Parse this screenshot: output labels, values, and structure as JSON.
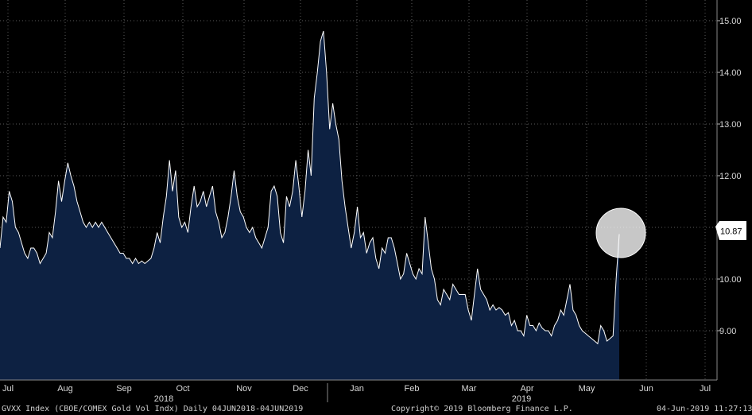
{
  "chart_data": {
    "type": "area",
    "x_labels": [
      "Jul",
      "Aug",
      "Sep",
      "Oct",
      "Nov",
      "Dec",
      "Jan",
      "Feb",
      "Mar",
      "Apr",
      "May",
      "Jun",
      "Jul"
    ],
    "year_labels": [
      "2018",
      "2019"
    ],
    "y_ticks": [
      "9.00",
      "10.00",
      "11.00",
      "12.00",
      "13.00",
      "14.00",
      "15.00"
    ],
    "ylim": [
      8.0,
      15.4
    ],
    "grid": true,
    "colors": {
      "background": "#000000",
      "area": "#0d2142",
      "line": "#ffffff",
      "grid": "#5a5a5a",
      "tag": "#ffffff"
    },
    "last_value": "10.87",
    "highlight": "circle around last value",
    "series": [
      {
        "values": [
          10.6,
          11.2,
          11.1,
          11.7,
          11.5,
          11.0,
          10.9,
          10.7,
          10.5,
          10.4,
          10.6,
          10.6,
          10.5,
          10.3,
          10.4,
          10.5,
          10.9,
          10.8,
          11.3,
          11.9,
          11.5,
          11.9,
          12.25,
          12.0,
          11.8,
          11.5,
          11.3,
          11.1,
          11.0,
          11.1,
          11.0,
          11.1,
          11.0,
          11.1,
          11.0,
          10.9,
          10.8,
          10.7,
          10.6,
          10.5,
          10.5,
          10.4,
          10.4,
          10.3,
          10.4,
          10.3,
          10.35,
          10.3,
          10.35,
          10.4,
          10.6,
          10.9,
          10.7,
          11.2,
          11.6,
          12.3,
          11.7,
          12.1,
          11.2,
          11.0,
          11.1,
          10.9,
          11.4,
          11.8,
          11.4,
          11.5,
          11.7,
          11.4,
          11.6,
          11.8,
          11.3,
          11.1,
          10.8,
          10.9,
          11.2,
          11.6,
          12.1,
          11.6,
          11.3,
          11.2,
          11.0,
          10.9,
          11.0,
          10.8,
          10.7,
          10.6,
          10.8,
          11.0,
          11.7,
          11.8,
          11.6,
          10.9,
          10.7,
          11.6,
          11.4,
          11.7,
          12.3,
          11.8,
          11.2,
          11.7,
          12.5,
          12.0,
          13.5,
          14.0,
          14.6,
          14.8,
          14.0,
          12.9,
          13.4,
          13.0,
          12.7,
          11.9,
          11.4,
          11.0,
          10.6,
          10.9,
          11.4,
          10.8,
          10.9,
          10.5,
          10.7,
          10.8,
          10.4,
          10.2,
          10.6,
          10.5,
          10.8,
          10.8,
          10.6,
          10.3,
          10.0,
          10.1,
          10.5,
          10.3,
          10.1,
          10.0,
          10.2,
          10.1,
          11.2,
          10.7,
          10.2,
          10.0,
          9.6,
          9.5,
          9.8,
          9.7,
          9.6,
          9.9,
          9.8,
          9.7,
          9.7,
          9.7,
          9.4,
          9.2,
          9.7,
          10.2,
          9.8,
          9.7,
          9.6,
          9.4,
          9.5,
          9.4,
          9.45,
          9.4,
          9.3,
          9.35,
          9.1,
          9.2,
          9.0,
          9.0,
          8.9,
          9.3,
          9.1,
          9.1,
          9.0,
          9.15,
          9.05,
          9.0,
          9.0,
          8.9,
          9.1,
          9.2,
          9.4,
          9.3,
          9.6,
          9.9,
          9.4,
          9.3,
          9.1,
          9.0,
          8.95,
          8.9,
          8.85,
          8.8,
          8.75,
          9.1,
          9.0,
          8.8,
          8.85,
          8.9,
          10.0,
          10.87
        ]
      }
    ]
  },
  "footer": {
    "left": "GVXX Index (CBOE/COMEX Gold Vol Indx)  Daily 04JUN2018-04JUN2019",
    "center": "Copyright© 2019 Bloomberg Finance L.P.",
    "right": "04-Jun-2019 11:27:13"
  }
}
